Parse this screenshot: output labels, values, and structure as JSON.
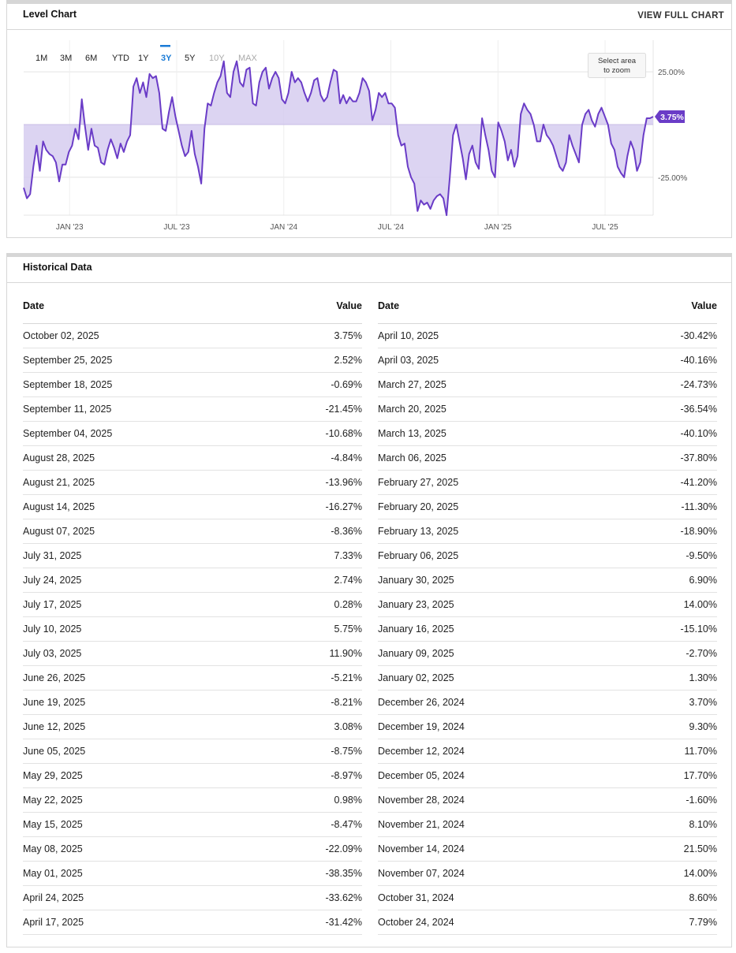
{
  "chart_card": {
    "title": "Level Chart",
    "view_full": "VIEW FULL CHART"
  },
  "ranges": [
    "1M",
    "3M",
    "6M",
    "YTD",
    "1Y",
    "3Y",
    "5Y",
    "10Y",
    "MAX"
  ],
  "active_range": "3Y",
  "disabled_ranges": [
    "10Y",
    "MAX"
  ],
  "zoom_hint": [
    "Select area",
    "to zoom"
  ],
  "colors": {
    "line": "#6a3cc7",
    "fill": "#d6ccf0",
    "active": "#1a7bd6",
    "label_bg": "#6a3cc7"
  },
  "chart_data": {
    "type": "area",
    "ylim": [
      -43,
      40
    ],
    "yticks": [
      25,
      -25
    ],
    "ytick_labels": [
      "25.00%",
      "-25.00%"
    ],
    "xtick_labels": [
      "JAN '23",
      "JUL '23",
      "JAN '24",
      "JUL '24",
      "JAN '25",
      "JUL '25"
    ],
    "x_range": [
      0,
      144
    ],
    "xtick_pos": [
      10.5,
      35,
      59.5,
      84,
      108.5,
      133
    ],
    "last_value_label": "3.75%",
    "values": [
      -30,
      -35,
      -33,
      -20,
      -10,
      -22,
      -8,
      -12,
      -14,
      -15,
      -18,
      -27,
      -19,
      -19,
      -13,
      -10,
      -2,
      -7,
      12,
      -1,
      -12,
      -2,
      -10,
      -11,
      -18,
      -19,
      -12,
      -7,
      -11,
      -16,
      -9,
      -13,
      -8,
      -5,
      18,
      22,
      15,
      20,
      13,
      24,
      22,
      23,
      15,
      -2,
      -3,
      6,
      13,
      4,
      -3,
      -10,
      -15,
      -13,
      -3,
      -14,
      -20,
      -28,
      -2,
      10,
      9,
      15,
      20,
      23,
      30,
      15,
      13,
      25,
      30,
      20,
      18,
      26,
      27,
      10,
      9,
      20,
      25,
      27,
      17,
      22,
      25,
      22,
      12,
      10,
      15,
      25,
      20,
      22,
      20,
      15,
      11,
      15,
      21,
      22,
      14,
      11,
      13,
      20,
      26,
      25,
      10,
      14,
      10,
      13,
      11,
      11,
      15,
      22,
      20,
      16,
      2,
      7,
      15,
      13,
      15,
      10,
      10,
      8,
      -5,
      -10,
      -9,
      -20,
      -25,
      -28,
      -41,
      -36,
      -38,
      -37,
      -40,
      -36,
      -34,
      -33,
      -35,
      -43,
      -25,
      -5,
      0,
      -8,
      -16,
      -26,
      -14,
      -10,
      -18,
      -21,
      3,
      -5,
      -12,
      -22,
      -25,
      1,
      -3,
      -8,
      -17,
      -12,
      -20,
      -15,
      5,
      10,
      7,
      5,
      0,
      -8,
      -8,
      0,
      -5,
      -7,
      -10,
      -15,
      -20,
      -22,
      -18,
      -5,
      -10,
      -14,
      -18,
      0,
      5,
      7,
      2,
      -1,
      5,
      8,
      4,
      0,
      -9,
      -12,
      -20,
      -23,
      -25,
      -15,
      -8,
      -12,
      -22,
      -18,
      -5,
      3,
      3,
      3.75
    ]
  },
  "historical": {
    "title": "Historical Data",
    "headers": {
      "date": "Date",
      "value": "Value"
    },
    "left": [
      [
        "October 02, 2025",
        "3.75%"
      ],
      [
        "September 25, 2025",
        "2.52%"
      ],
      [
        "September 18, 2025",
        "-0.69%"
      ],
      [
        "September 11, 2025",
        "-21.45%"
      ],
      [
        "September 04, 2025",
        "-10.68%"
      ],
      [
        "August 28, 2025",
        "-4.84%"
      ],
      [
        "August 21, 2025",
        "-13.96%"
      ],
      [
        "August 14, 2025",
        "-16.27%"
      ],
      [
        "August 07, 2025",
        "-8.36%"
      ],
      [
        "July 31, 2025",
        "7.33%"
      ],
      [
        "July 24, 2025",
        "2.74%"
      ],
      [
        "July 17, 2025",
        "0.28%"
      ],
      [
        "July 10, 2025",
        "5.75%"
      ],
      [
        "July 03, 2025",
        "11.90%"
      ],
      [
        "June 26, 2025",
        "-5.21%"
      ],
      [
        "June 19, 2025",
        "-8.21%"
      ],
      [
        "June 12, 2025",
        "3.08%"
      ],
      [
        "June 05, 2025",
        "-8.75%"
      ],
      [
        "May 29, 2025",
        "-8.97%"
      ],
      [
        "May 22, 2025",
        "0.98%"
      ],
      [
        "May 15, 2025",
        "-8.47%"
      ],
      [
        "May 08, 2025",
        "-22.09%"
      ],
      [
        "May 01, 2025",
        "-38.35%"
      ],
      [
        "April 24, 2025",
        "-33.62%"
      ],
      [
        "April 17, 2025",
        "-31.42%"
      ]
    ],
    "right": [
      [
        "April 10, 2025",
        "-30.42%"
      ],
      [
        "April 03, 2025",
        "-40.16%"
      ],
      [
        "March 27, 2025",
        "-24.73%"
      ],
      [
        "March 20, 2025",
        "-36.54%"
      ],
      [
        "March 13, 2025",
        "-40.10%"
      ],
      [
        "March 06, 2025",
        "-37.80%"
      ],
      [
        "February 27, 2025",
        "-41.20%"
      ],
      [
        "February 20, 2025",
        "-11.30%"
      ],
      [
        "February 13, 2025",
        "-18.90%"
      ],
      [
        "February 06, 2025",
        "-9.50%"
      ],
      [
        "January 30, 2025",
        "6.90%"
      ],
      [
        "January 23, 2025",
        "14.00%"
      ],
      [
        "January 16, 2025",
        "-15.10%"
      ],
      [
        "January 09, 2025",
        "-2.70%"
      ],
      [
        "January 02, 2025",
        "1.30%"
      ],
      [
        "December 26, 2024",
        "3.70%"
      ],
      [
        "December 19, 2024",
        "9.30%"
      ],
      [
        "December 12, 2024",
        "11.70%"
      ],
      [
        "December 05, 2024",
        "17.70%"
      ],
      [
        "November 28, 2024",
        "-1.60%"
      ],
      [
        "November 21, 2024",
        "8.10%"
      ],
      [
        "November 14, 2024",
        "21.50%"
      ],
      [
        "November 07, 2024",
        "14.00%"
      ],
      [
        "October 31, 2024",
        "8.60%"
      ],
      [
        "October 24, 2024",
        "7.79%"
      ]
    ]
  }
}
